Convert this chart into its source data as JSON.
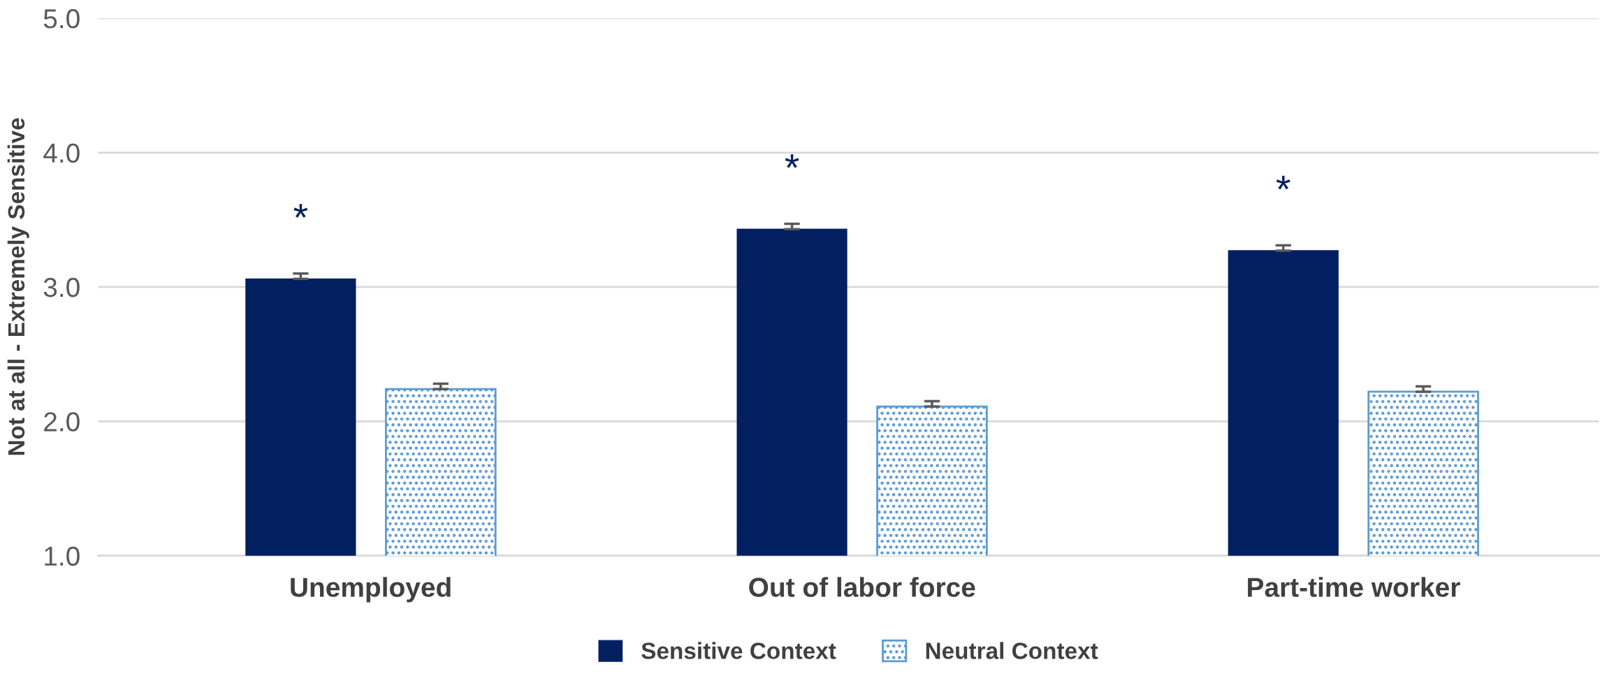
{
  "chart_data": {
    "type": "bar",
    "ylabel": "Not at all - Extremely Sensitive",
    "categories": [
      "Unemployed",
      "Out of labor force",
      "Part-time worker"
    ],
    "series": [
      {
        "name": "Sensitive Context",
        "color": "#022060",
        "values": [
          3.06,
          3.43,
          3.27
        ],
        "errors": [
          0.04,
          0.04,
          0.04
        ]
      },
      {
        "name": "Neutral Context",
        "color": "#5b9bd5",
        "values": [
          2.24,
          2.11,
          2.22
        ],
        "errors": [
          0.04,
          0.04,
          0.04
        ]
      }
    ],
    "ylim": [
      1,
      5
    ],
    "yticks": [
      {
        "value": 1,
        "label": "1.0"
      },
      {
        "value": 2,
        "label": "2.0"
      },
      {
        "value": 3,
        "label": "3.0"
      },
      {
        "value": 4,
        "label": "4.0"
      },
      {
        "value": 5,
        "label": "5.0"
      }
    ],
    "grid": "y",
    "legend": "bottom",
    "annotations": [
      "*",
      "*",
      "*"
    ]
  }
}
